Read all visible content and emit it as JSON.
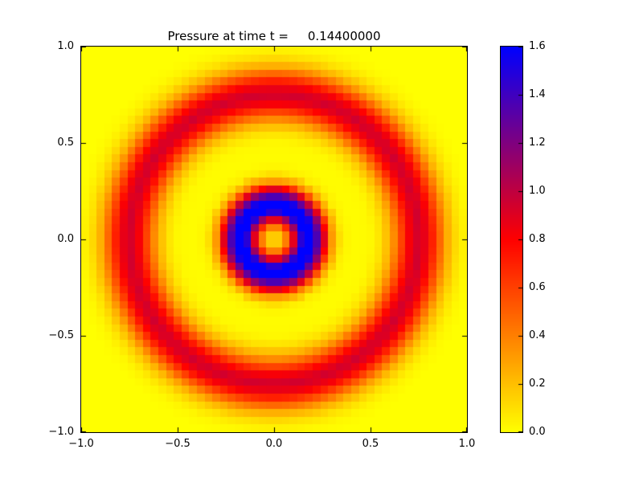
{
  "title": "Pressure at time t =     0.14400000",
  "chart_data": {
    "type": "heatmap",
    "title": "Pressure at time t =     0.14400000",
    "xlabel": "",
    "ylabel": "",
    "x_range": [
      -1.0,
      1.0
    ],
    "y_range": [
      -1.0,
      1.0
    ],
    "x_ticks": [
      "−1.0",
      "−0.5",
      "0.0",
      "0.5",
      "1.0"
    ],
    "x_tick_values": [
      -1.0,
      -0.5,
      0.0,
      0.5,
      1.0
    ],
    "y_ticks": [
      "−1.0",
      "−0.5",
      "0.0",
      "0.5",
      "1.0"
    ],
    "y_tick_values": [
      -1.0,
      -0.5,
      0.0,
      0.5,
      1.0
    ],
    "grid_cells": [
      50,
      50
    ],
    "field_description": "radially symmetric pressure field p(r), r = sqrt(x^2+y^2); inner blue ring (p ~ 1.6) around a low-pressure center spot, outer red ring (p ~ 0.95) at r ~ 0.75, background p ~ 0",
    "radial_profile": {
      "r": [
        0.0,
        0.05,
        0.1,
        0.15,
        0.2,
        0.25,
        0.3,
        0.35,
        0.4,
        0.45,
        0.5,
        0.55,
        0.6,
        0.65,
        0.7,
        0.75,
        0.8,
        0.85,
        0.9,
        0.95,
        1.0,
        1.05,
        1.1,
        1.2,
        1.3,
        1.45
      ],
      "p": [
        0.07,
        0.24,
        0.86,
        1.6,
        1.6,
        1.04,
        0.32,
        0.05,
        0.01,
        0.01,
        0.02,
        0.09,
        0.25,
        0.53,
        0.82,
        0.95,
        0.82,
        0.53,
        0.25,
        0.09,
        0.02,
        0.0,
        0.0,
        0.0,
        0.0,
        0.0
      ]
    },
    "colormap": {
      "name": "yellow-red-blue",
      "stops": [
        {
          "t": 0.0,
          "rgb": [
            255,
            255,
            0
          ]
        },
        {
          "t": 0.5,
          "rgb": [
            255,
            0,
            0
          ]
        },
        {
          "t": 1.0,
          "rgb": [
            0,
            0,
            255
          ]
        }
      ]
    },
    "colorbar": {
      "min": 0.0,
      "max": 1.6,
      "ticks": [
        "0.0",
        "0.2",
        "0.4",
        "0.6",
        "0.8",
        "1.0",
        "1.2",
        "1.4",
        "1.6"
      ],
      "tick_values": [
        0.0,
        0.2,
        0.4,
        0.6,
        0.8,
        1.0,
        1.2,
        1.4,
        1.6
      ],
      "position": "right"
    },
    "legend": "none",
    "grid": false
  }
}
